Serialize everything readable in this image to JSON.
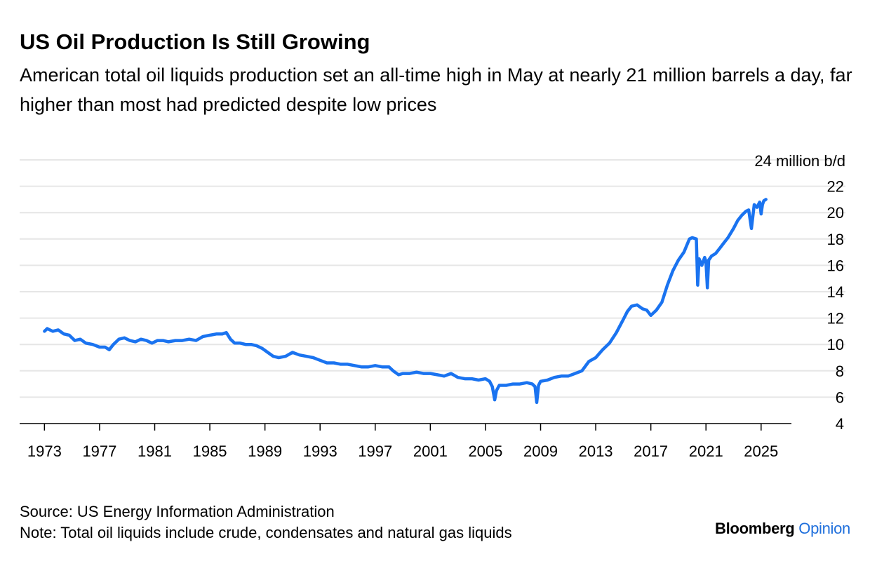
{
  "header": {
    "title": "US Oil Production Is Still Growing",
    "subtitle": "American total oil liquids production set an all-time high in May at nearly 21 million barrels a day, far higher than most had predicted despite low prices"
  },
  "footer": {
    "source": "Source: US Energy Information Administration",
    "note": "Note: Total oil liquids include crude, condensates and natural gas liquids",
    "brand_name": "Bloomberg",
    "brand_sub": "Opinion"
  },
  "colors": {
    "line": "#1a73f0",
    "grid": "#e6e6e6",
    "axis": "#000000",
    "brand_accent": "#1f6fdc"
  },
  "chart_data": {
    "type": "line",
    "title": "US Oil Production Is Still Growing",
    "ylabel": "",
    "xlabel": "",
    "y_top_label": "24 million b/d",
    "ylim": [
      4,
      24
    ],
    "xlim": [
      1971.2,
      2027.2
    ],
    "y_ticks": [
      4,
      6,
      8,
      10,
      12,
      14,
      16,
      18,
      20,
      22
    ],
    "x_ticks": [
      "1973",
      "1977",
      "1981",
      "1985",
      "1989",
      "1993",
      "1997",
      "2001",
      "2005",
      "2009",
      "2013",
      "2017",
      "2021",
      "2025"
    ],
    "grid": true,
    "y_axis_side": "right",
    "series": [
      {
        "name": "",
        "x": [
          1973.0,
          1973.2,
          1973.6,
          1974.0,
          1974.4,
          1974.8,
          1975.2,
          1975.6,
          1976.0,
          1976.5,
          1977.0,
          1977.4,
          1977.7,
          1978.0,
          1978.4,
          1978.8,
          1979.2,
          1979.6,
          1980.0,
          1980.4,
          1980.8,
          1981.2,
          1981.6,
          1982.0,
          1982.5,
          1983.0,
          1983.5,
          1984.0,
          1984.5,
          1985.0,
          1985.5,
          1985.9,
          1986.2,
          1986.5,
          1986.8,
          1987.2,
          1987.6,
          1988.0,
          1988.4,
          1988.8,
          1989.2,
          1989.6,
          1990.0,
          1990.5,
          1991.0,
          1991.5,
          1992.0,
          1992.5,
          1993.0,
          1993.5,
          1994.0,
          1994.5,
          1995.0,
          1995.5,
          1996.0,
          1996.5,
          1997.0,
          1997.5,
          1998.0,
          1998.3,
          1998.7,
          1999.0,
          1999.5,
          2000.0,
          2000.5,
          2001.0,
          2001.5,
          2002.0,
          2002.5,
          2003.0,
          2003.5,
          2004.0,
          2004.5,
          2005.0,
          2005.3,
          2005.5,
          2005.67,
          2005.8,
          2006.0,
          2006.5,
          2007.0,
          2007.5,
          2008.0,
          2008.4,
          2008.6,
          2008.72,
          2008.85,
          2009.0,
          2009.5,
          2010.0,
          2010.5,
          2011.0,
          2011.5,
          2012.0,
          2012.5,
          2013.0,
          2013.5,
          2014.0,
          2014.5,
          2015.0,
          2015.3,
          2015.6,
          2016.0,
          2016.4,
          2016.7,
          2017.0,
          2017.4,
          2017.8,
          2018.2,
          2018.6,
          2019.0,
          2019.4,
          2019.8,
          2020.0,
          2020.3,
          2020.4,
          2020.5,
          2020.7,
          2020.9,
          2021.0,
          2021.1,
          2021.2,
          2021.4,
          2021.7,
          2022.0,
          2022.3,
          2022.6,
          2023.0,
          2023.3,
          2023.6,
          2023.9,
          2024.1,
          2024.3,
          2024.5,
          2024.7,
          2024.9,
          2025.0,
          2025.1,
          2025.2,
          2025.35
        ],
        "values": [
          11.0,
          11.2,
          11.0,
          11.1,
          10.8,
          10.7,
          10.3,
          10.4,
          10.1,
          10.0,
          9.8,
          9.8,
          9.6,
          10.0,
          10.4,
          10.5,
          10.3,
          10.2,
          10.4,
          10.3,
          10.1,
          10.3,
          10.3,
          10.2,
          10.3,
          10.3,
          10.4,
          10.3,
          10.6,
          10.7,
          10.8,
          10.8,
          10.9,
          10.4,
          10.1,
          10.1,
          10.0,
          10.0,
          9.9,
          9.7,
          9.4,
          9.1,
          9.0,
          9.1,
          9.4,
          9.2,
          9.1,
          9.0,
          8.8,
          8.6,
          8.6,
          8.5,
          8.5,
          8.4,
          8.3,
          8.3,
          8.4,
          8.3,
          8.3,
          8.0,
          7.7,
          7.8,
          7.8,
          7.9,
          7.8,
          7.8,
          7.7,
          7.6,
          7.8,
          7.5,
          7.4,
          7.4,
          7.3,
          7.4,
          7.2,
          6.8,
          5.8,
          6.5,
          6.9,
          6.9,
          7.0,
          7.0,
          7.1,
          7.0,
          6.8,
          5.6,
          6.9,
          7.2,
          7.3,
          7.5,
          7.6,
          7.6,
          7.8,
          8.0,
          8.7,
          9.0,
          9.6,
          10.1,
          10.9,
          11.9,
          12.5,
          12.9,
          13.0,
          12.7,
          12.6,
          12.2,
          12.6,
          13.2,
          14.5,
          15.6,
          16.4,
          17.0,
          18.0,
          18.1,
          18.0,
          14.5,
          16.5,
          16.0,
          16.6,
          16.3,
          14.3,
          16.4,
          16.7,
          16.9,
          17.3,
          17.7,
          18.1,
          18.8,
          19.4,
          19.8,
          20.1,
          20.2,
          18.8,
          20.6,
          20.4,
          20.8,
          19.9,
          20.6,
          20.9,
          21.0
        ]
      }
    ]
  }
}
